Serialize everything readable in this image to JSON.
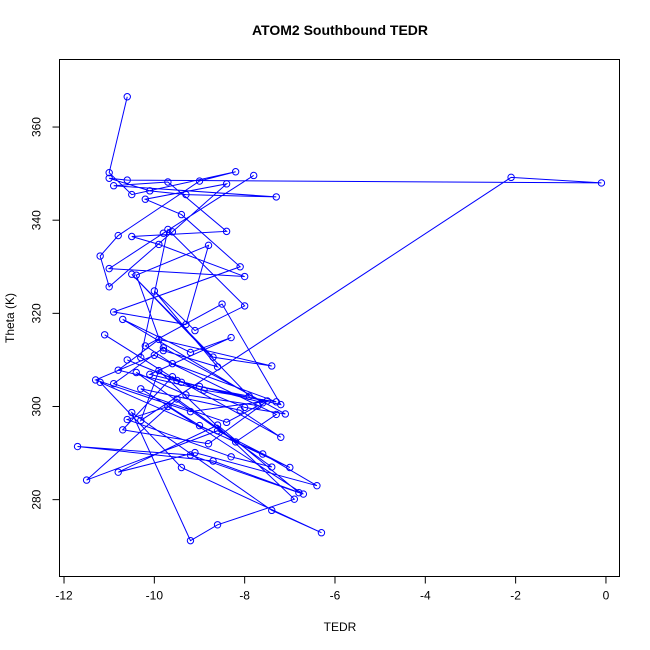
{
  "chart_data": {
    "type": "line",
    "title": "ATOM2 Southbound TEDR",
    "xlabel": "TEDR",
    "ylabel": "Theta (K)",
    "xlim": [
      -12.1,
      0.3
    ],
    "ylim": [
      263.5,
      374.5
    ],
    "x_ticks": [
      -12,
      -10,
      -8,
      -6,
      -4,
      -2,
      0
    ],
    "y_ticks": [
      280,
      300,
      320,
      340,
      360
    ],
    "x_tick_labels": [
      "-12",
      "-10",
      "-8",
      "-6",
      "-4",
      "-2",
      "0"
    ],
    "y_tick_labels": [
      "280",
      "300",
      "320",
      "340",
      "360"
    ],
    "grid": false,
    "legend": "none",
    "line_color": "#0000ff",
    "marker": "open-circle",
    "series": [
      {
        "x": [
          -10.6,
          -11.0,
          -10.5,
          -8.2,
          -9.0,
          -10.8,
          -11.2,
          -11.0,
          -9.6,
          -8.4,
          -10.2,
          -9.4,
          -8.1,
          -10.9,
          -9.3,
          -8.8,
          -10.4,
          -9.8,
          -8.6,
          -10.0,
          -9.1,
          -8.0,
          -9.7,
          -10.3,
          -11.1,
          -9.5,
          -7.6,
          -10.7,
          -9.2,
          -8.3,
          -10.1,
          -9.0,
          -7.9,
          -10.5,
          -8.7,
          -7.4,
          -9.9,
          -10.8,
          -8.9,
          -7.3,
          -9.6,
          -10.2,
          -8.5,
          -7.2,
          -9.4,
          -10.6,
          -8.0,
          -7.1,
          -9.8,
          -10.9,
          -8.4,
          -7.7,
          -9.3,
          -10.4,
          -8.2,
          -7.3,
          -10.0,
          -11.3,
          -9.2,
          -7.5,
          -8.8,
          -10.7,
          -9.6,
          -7.2,
          -8.1,
          -10.3,
          -9.0,
          -7.0,
          -8.6,
          -11.5,
          -9.5,
          -7.4,
          -8.3,
          -10.6,
          -9.7,
          -6.7,
          -8.7,
          -11.7,
          -9.2,
          -6.8,
          -8.6,
          -10.8,
          -9.1,
          -6.4,
          -7.6,
          -11.2,
          -9.4,
          -6.3,
          -7.4,
          -10.5,
          -9.2,
          -8.6,
          -6.9,
          -9.9,
          -10.3,
          -2.1,
          -0.1,
          -10.6,
          -11.0,
          -10.1,
          -9.3,
          -7.3,
          -10.9,
          -9.7,
          -8.4,
          -10.5,
          -9.9,
          -8.0,
          -11.0,
          -9.8,
          -7.8
        ],
        "y": [
          366.5,
          350.2,
          345.5,
          350.4,
          348.4,
          336.7,
          332.3,
          325.7,
          337.5,
          347.8,
          344.5,
          341.2,
          330.0,
          320.3,
          317.6,
          334.6,
          328.2,
          312.0,
          308.5,
          324.8,
          316.3,
          321.6,
          338.0,
          310.5,
          315.4,
          305.6,
          300.8,
          318.7,
          311.6,
          314.8,
          306.9,
          304.3,
          302.2,
          328.4,
          310.6,
          308.7,
          314.4,
          307.8,
          303.5,
          301.0,
          309.2,
          313.0,
          322.0,
          300.4,
          305.2,
          310.0,
          299.8,
          298.4,
          312.6,
          304.9,
          296.6,
          300.2,
          302.5,
          307.3,
          292.4,
          298.3,
          311.0,
          305.7,
          298.9,
          301.2,
          292.0,
          295.0,
          306.4,
          293.4,
          299.2,
          303.8,
          295.9,
          286.9,
          294.8,
          284.2,
          301.6,
          287.0,
          289.2,
          297.2,
          300.0,
          281.2,
          288.3,
          291.4,
          289.6,
          281.5,
          296.0,
          285.9,
          290.1,
          283.0,
          289.8,
          305.2,
          286.9,
          272.9,
          277.7,
          298.7,
          271.2,
          274.6,
          280.1,
          307.7,
          297.0,
          349.2,
          348.0,
          348.6,
          349.0,
          346.3,
          345.5,
          345.0,
          347.4,
          348.2,
          337.6,
          336.5,
          334.8,
          327.9,
          329.6,
          337.2,
          349.6
        ]
      }
    ]
  }
}
